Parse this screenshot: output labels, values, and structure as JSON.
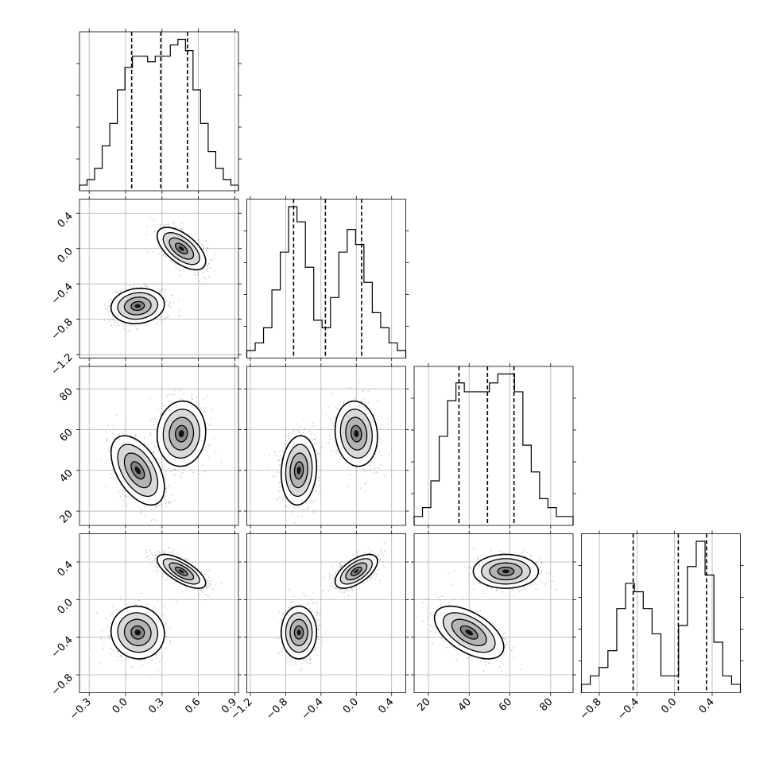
{
  "chart_data": {
    "type": "corner",
    "grid": true,
    "parameters": [
      {
        "ticks": [
          -0.3,
          0.0,
          0.3,
          0.6,
          0.9
        ],
        "tick_labels": [
          "−0.3",
          "0.0",
          "0.3",
          "0.6",
          "0.9"
        ],
        "range": [
          -0.38,
          0.93
        ],
        "quantiles": [
          0.05,
          0.29,
          0.51
        ]
      },
      {
        "ticks": [
          -1.2,
          -0.8,
          -0.4,
          0.0,
          0.4
        ],
        "tick_labels": [
          "−1.2",
          "−0.8",
          "−0.4",
          "0.0",
          "0.4"
        ],
        "range": [
          -1.24,
          0.56
        ],
        "quantiles": [
          -0.71,
          -0.35,
          0.06
        ]
      },
      {
        "ticks": [
          20,
          40,
          60,
          80
        ],
        "tick_labels": [
          "20",
          "40",
          "60",
          "80"
        ],
        "range": [
          13,
          91
        ],
        "quantiles": [
          35,
          49,
          62
        ]
      },
      {
        "ticks": [
          -0.8,
          -0.4,
          0.0,
          0.4
        ],
        "tick_labels": [
          "−0.8",
          "−0.4",
          "0.0",
          "0.4"
        ],
        "range": [
          -0.99,
          0.7
        ],
        "quantiles": [
          -0.44,
          0.04,
          0.34
        ]
      }
    ],
    "histograms": [
      [
        1,
        2,
        4,
        8,
        12,
        18,
        22,
        24,
        24,
        23,
        24,
        24,
        26,
        27,
        25,
        18,
        12,
        7,
        4,
        2,
        1
      ],
      [
        1,
        2,
        4,
        9,
        14,
        20,
        18,
        12,
        5,
        4,
        8,
        14,
        17,
        15,
        10,
        6,
        4,
        2,
        1
      ],
      [
        1,
        2,
        5,
        10,
        14,
        16,
        15,
        15,
        15,
        16,
        17,
        17,
        15,
        9,
        6,
        3,
        2,
        1,
        1
      ],
      [
        1,
        2,
        3,
        5,
        10,
        13,
        12,
        10,
        7,
        2,
        2,
        8,
        15,
        18,
        14,
        6,
        2,
        1
      ]
    ],
    "modes": [
      {
        "center": [
          0.1,
          -0.65,
          40,
          -0.35
        ],
        "sd": [
          0.11,
          0.1,
          8.5,
          0.14
        ],
        "corr": [
          [
            1,
            0.1,
            -0.5,
            -0.05
          ],
          [
            0.1,
            1,
            0.1,
            0.0
          ],
          [
            -0.5,
            0.1,
            1,
            -0.55
          ],
          [
            -0.05,
            0.0,
            -0.55,
            1
          ]
        ]
      },
      {
        "center": [
          0.46,
          0.0,
          58,
          0.3
        ],
        "sd": [
          0.1,
          0.12,
          8.0,
          0.09
        ],
        "corr": [
          [
            1,
            -0.6,
            0.05,
            -0.7
          ],
          [
            -0.6,
            1,
            -0.1,
            0.6
          ],
          [
            0.05,
            -0.1,
            1,
            0.0
          ],
          [
            -0.7,
            0.6,
            0.0,
            1
          ]
        ]
      }
    ],
    "contour_levels": [
      0.5,
      1.0,
      1.5,
      2.0
    ]
  }
}
